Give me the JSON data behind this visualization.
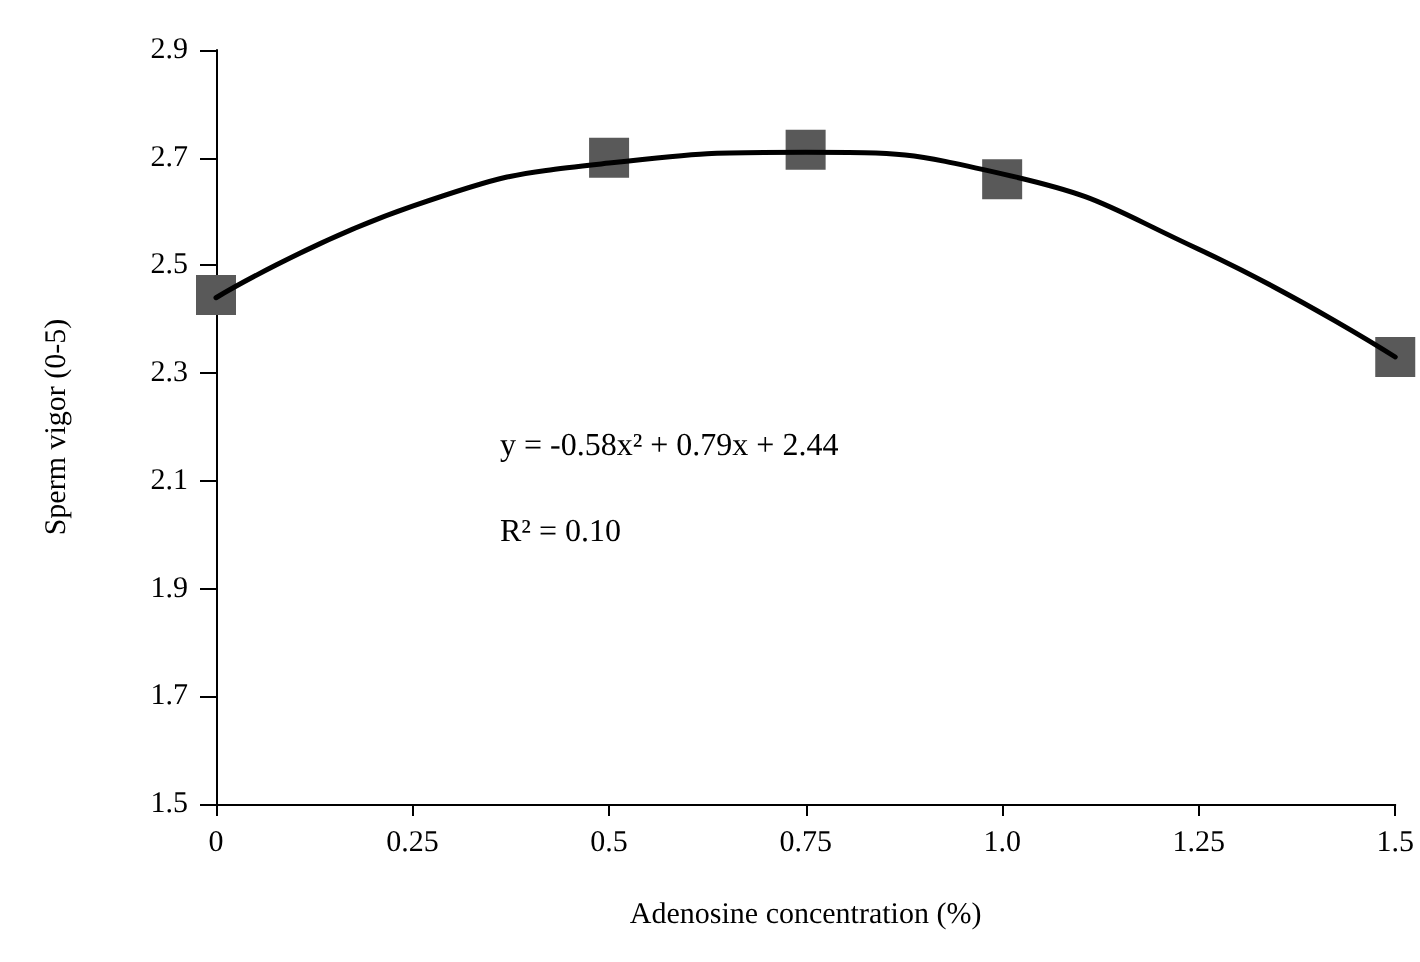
{
  "chart_data": {
    "type": "scatter",
    "xlabel": "Adenosine concentration (%)",
    "ylabel": "Sperm vigor (0-5)",
    "x": [
      0,
      0.5,
      0.75,
      1.0,
      1.5
    ],
    "series": [
      {
        "color": "#595959",
        "marker": "square",
        "values": [
          2.445,
          2.7,
          2.715,
          2.66,
          2.33
        ]
      },
      {
        "type": "line",
        "color": "#000000",
        "marker": "none",
        "line_style": "solid",
        "x": [
          0,
          0.25,
          0.5,
          0.75,
          1.0,
          1.25,
          1.5
        ],
        "values": [
          2.44,
          2.61,
          2.69,
          2.71,
          2.67,
          2.53,
          2.33
        ]
      }
    ],
    "xlim": [
      0,
      1.5
    ],
    "xticks": [
      0,
      0.25,
      0.5,
      0.75,
      {
        "value": 1.0,
        "label": "1.0"
      },
      1.25,
      1.5
    ],
    "ylim": [
      1.5,
      2.9
    ],
    "yticks": [
      1.5,
      1.7,
      1.9,
      2.1,
      2.3,
      2.5,
      2.7,
      2.9
    ],
    "grid": false,
    "annotations": [
      "y = -0.58x² + 0.79x + 2.44",
      "R² = 0.10"
    ]
  }
}
